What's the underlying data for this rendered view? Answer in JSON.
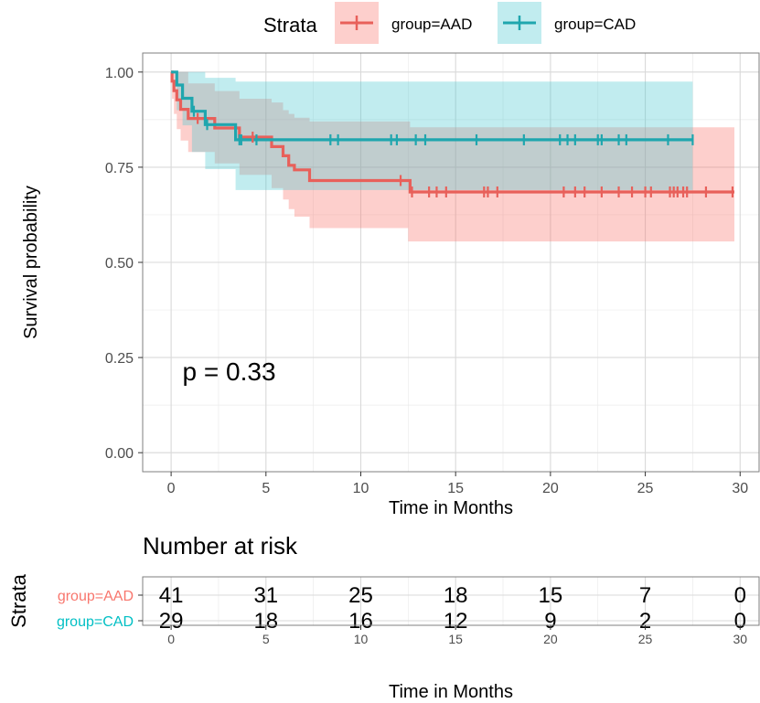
{
  "colors": {
    "aad": "#F8766D",
    "cad": "#00BFC4",
    "aad_line": "#E8605A",
    "cad_line": "#1FA6AE",
    "aad_band": "#F8766D",
    "cad_band": "#4CC9D0",
    "grid_major": "#D9D9D9",
    "grid_minor": "#EBEBEB",
    "panel_border": "#7F7F7F",
    "text": "#000000",
    "axis_text": "#4D4D4D"
  },
  "legend": {
    "title": "Strata",
    "items": [
      {
        "key": "aad",
        "label": "group=AAD"
      },
      {
        "key": "cad",
        "label": "group=CAD"
      }
    ]
  },
  "chart_data": [
    {
      "type": "line",
      "subtype": "kaplan-meier survival curve",
      "xlabel": "Time in Months",
      "ylabel": "Survival probability",
      "xlim": [
        -1.5,
        31.0
      ],
      "ylim": [
        -0.05,
        1.05
      ],
      "x_ticks": [
        0,
        5,
        10,
        15,
        20,
        25,
        30
      ],
      "y_ticks": [
        "0.00",
        "0.25",
        "0.50",
        "0.75",
        "1.00"
      ],
      "y_tick_values": [
        0,
        0.25,
        0.5,
        0.75,
        1.0
      ],
      "grid": true,
      "annotation": "p = 0.33",
      "annotation_at": {
        "x": 0.6,
        "y": 0.19
      },
      "series": [
        {
          "name": "group=AAD",
          "key": "aad",
          "steps": [
            [
              0,
              1.0
            ],
            [
              0.05,
              0.976
            ],
            [
              0.15,
              0.951
            ],
            [
              0.3,
              0.927
            ],
            [
              0.5,
              0.902
            ],
            [
              0.9,
              0.878
            ],
            [
              1.9,
              0.878
            ],
            [
              2.3,
              0.853
            ],
            [
              3.5,
              0.853
            ],
            [
              3.6,
              0.829
            ],
            [
              5.0,
              0.829
            ],
            [
              5.3,
              0.804
            ],
            [
              5.9,
              0.78
            ],
            [
              6.2,
              0.755
            ],
            [
              6.5,
              0.743
            ],
            [
              7.3,
              0.715
            ],
            [
              12.5,
              0.715
            ],
            [
              12.6,
              0.685
            ],
            [
              29.7,
              0.685
            ]
          ],
          "band_steps": [
            [
              0,
              1.0,
              1.0
            ],
            [
              0.05,
              0.93,
              1.0
            ],
            [
              0.15,
              0.89,
              1.0
            ],
            [
              0.3,
              0.85,
              1.0
            ],
            [
              0.5,
              0.82,
              1.0
            ],
            [
              0.9,
              0.79,
              0.97
            ],
            [
              2.3,
              0.76,
              0.95
            ],
            [
              3.6,
              0.73,
              0.93
            ],
            [
              5.3,
              0.695,
              0.92
            ],
            [
              5.9,
              0.665,
              0.9
            ],
            [
              6.2,
              0.64,
              0.89
            ],
            [
              6.5,
              0.62,
              0.88
            ],
            [
              7.3,
              0.59,
              0.87
            ],
            [
              12.5,
              0.555,
              0.87
            ],
            [
              12.6,
              0.555,
              0.855
            ],
            [
              29.7,
              0.555,
              0.855
            ]
          ],
          "censor_times": [
            1.4,
            4.3,
            12.1,
            12.7,
            13.6,
            14.0,
            14.5,
            16.5,
            16.7,
            17.2,
            20.7,
            21.3,
            21.8,
            22.7,
            23.6,
            24.3,
            25.0,
            25.3,
            26.3,
            26.5,
            26.7,
            27.0,
            27.2,
            28.2,
            29.6
          ]
        },
        {
          "name": "group=CAD",
          "key": "cad",
          "steps": [
            [
              0,
              1.0
            ],
            [
              0.3,
              0.966
            ],
            [
              0.6,
              0.931
            ],
            [
              1.1,
              0.897
            ],
            [
              1.8,
              0.862
            ],
            [
              3.3,
              0.862
            ],
            [
              3.4,
              0.822
            ],
            [
              27.5,
              0.822
            ]
          ],
          "band_steps": [
            [
              0,
              1.0,
              1.0
            ],
            [
              0.3,
              0.9,
              1.0
            ],
            [
              0.6,
              0.86,
              1.0
            ],
            [
              1.1,
              0.79,
              1.0
            ],
            [
              1.8,
              0.745,
              0.985
            ],
            [
              3.4,
              0.69,
              0.975
            ],
            [
              27.5,
              0.69,
              0.975
            ]
          ],
          "censor_times": [
            1.2,
            1.9,
            3.6,
            3.7,
            4.5,
            8.4,
            8.8,
            11.6,
            11.9,
            12.9,
            13.4,
            16.1,
            18.6,
            20.5,
            20.9,
            21.3,
            22.5,
            22.7,
            23.6,
            24.0,
            26.2,
            27.5
          ]
        }
      ]
    },
    {
      "type": "table",
      "title": "Number at risk",
      "row_axis_label": "Strata",
      "xlabel": "Time in Months",
      "x_ticks": [
        0,
        5,
        10,
        15,
        20,
        25,
        30
      ],
      "times": [
        0,
        5,
        10,
        15,
        20,
        25,
        30
      ],
      "rows": [
        {
          "key": "aad",
          "label": "group=AAD",
          "values": [
            41,
            31,
            25,
            18,
            15,
            7,
            0
          ]
        },
        {
          "key": "cad",
          "label": "group=CAD",
          "values": [
            29,
            18,
            16,
            12,
            9,
            2,
            0
          ]
        }
      ]
    }
  ]
}
